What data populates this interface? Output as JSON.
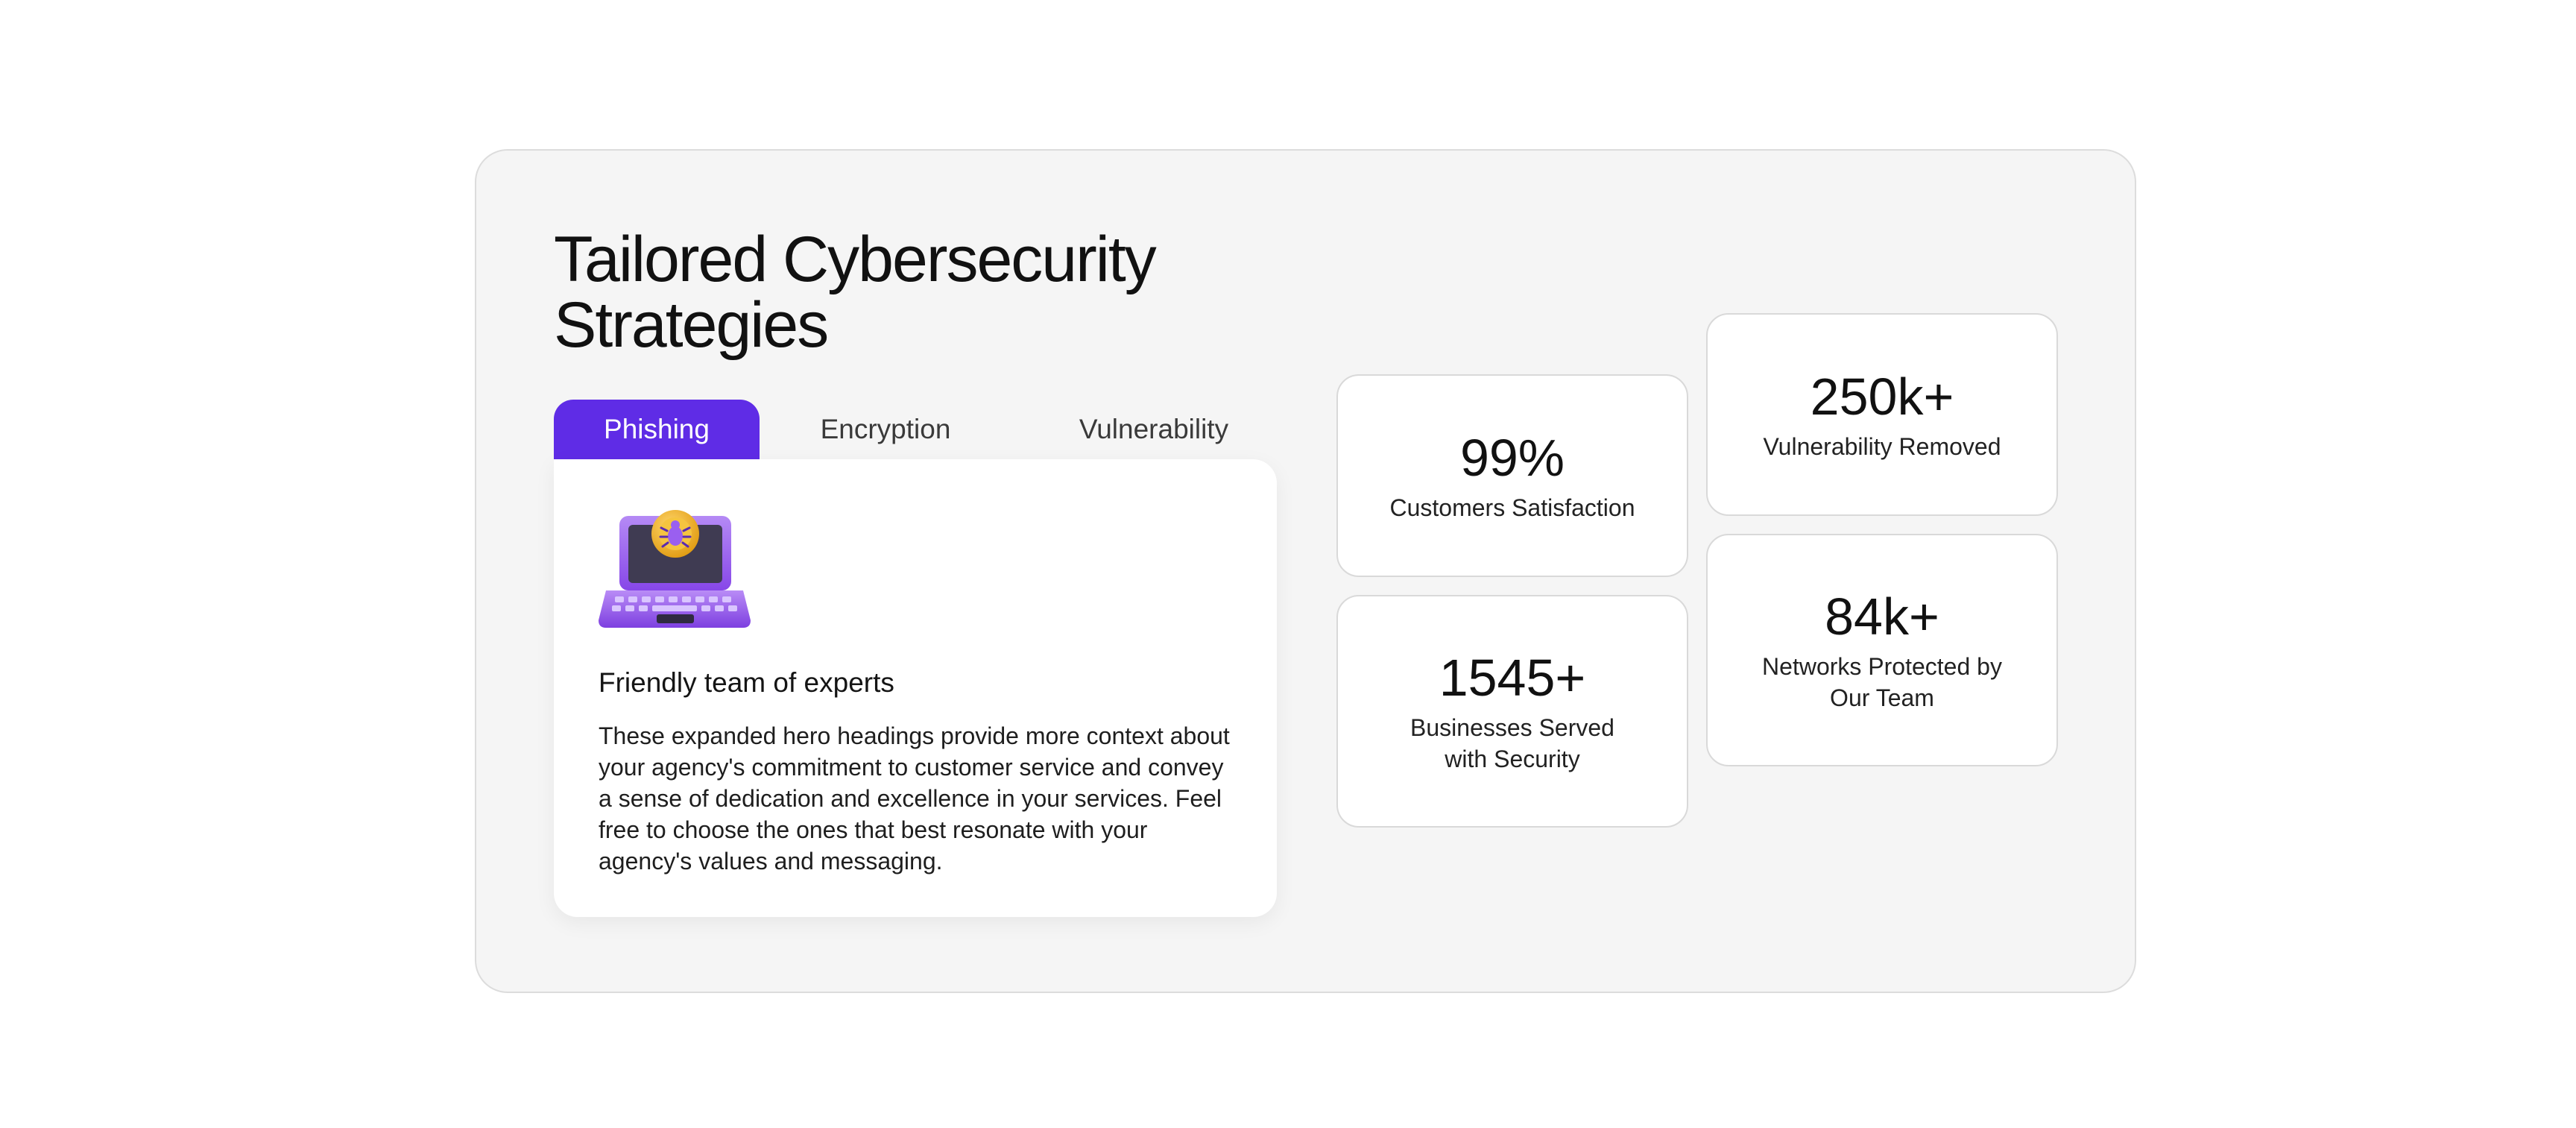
{
  "section": {
    "title": "Tailored Cybersecurity Strategies"
  },
  "tabs": [
    {
      "label": "Phishing",
      "active": true
    },
    {
      "label": "Encryption",
      "active": false
    },
    {
      "label": "Vulnerability",
      "active": false
    }
  ],
  "tab_content": {
    "icon": "laptop-bug-icon",
    "heading": "Friendly team of experts",
    "body": "These expanded hero headings provide more context about your agency's commitment to customer service and convey a sense of dedication and excellence in your services. Feel free to choose the ones that best resonate with your agency's values and messaging."
  },
  "stats": [
    {
      "value": "99%",
      "label": "Customers Satisfaction"
    },
    {
      "value": "1545+",
      "label": "Businesses Served\nwith Security"
    },
    {
      "value": "250k+",
      "label": "Vulnerability Removed"
    },
    {
      "value": "84k+",
      "label": "Networks Protected  by\nOur Team"
    }
  ],
  "colors": {
    "accent": "#5f2ce6",
    "panel_background": "#f5f5f5",
    "card_background": "#ffffff",
    "icon_purple": "#9a5ff0",
    "icon_gold": "#f0b020"
  }
}
